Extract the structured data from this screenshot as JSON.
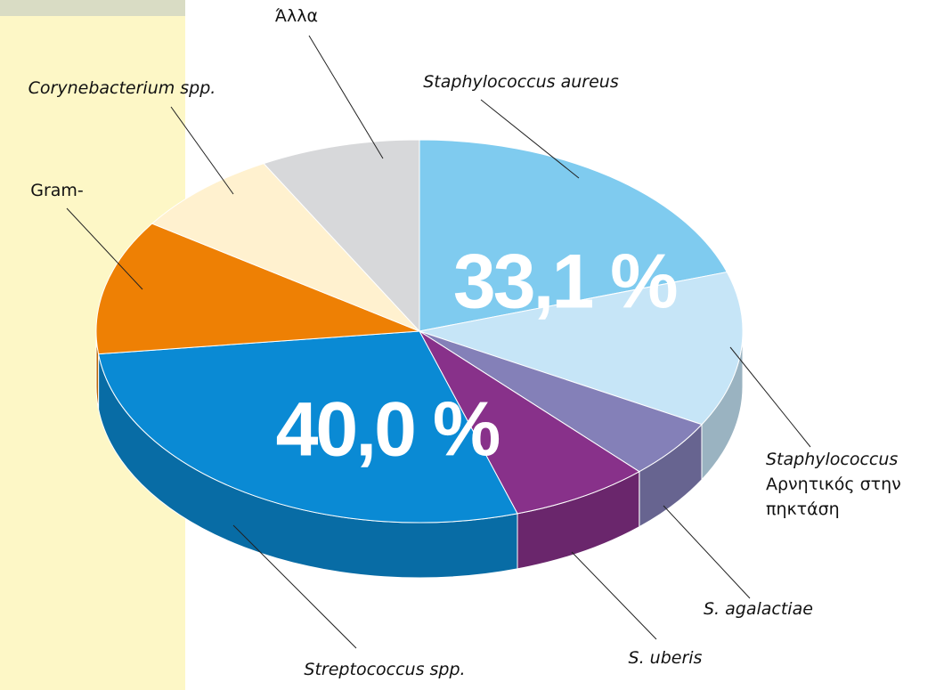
{
  "chart_data": {
    "type": "pie3d",
    "series": [
      {
        "name": "Staphylococcus aureus",
        "value": 20.0,
        "color": "#7fcbef",
        "italic": true
      },
      {
        "name": [
          "Staphylococcus",
          "Αρνητικός στην",
          "πηκτάση"
        ],
        "value": 13.1,
        "color": "#c6e5f7",
        "italic": true
      },
      {
        "name": "S. agalactiae",
        "value": 5.0,
        "color": "#8480b8",
        "italic": true
      },
      {
        "name": "S. uberis",
        "value": 7.0,
        "color": "#88318a",
        "italic": true
      },
      {
        "name": "Streptococcus spp.",
        "value": 28.0,
        "color": "#0a8ad4",
        "italic": true
      },
      {
        "name": "Gram-",
        "value": 11.4,
        "color": "#ee8004",
        "italic": false
      },
      {
        "name": "Corynebacterium spp.",
        "value": 7.5,
        "color": "#fff1cf",
        "italic": true
      },
      {
        "name": "Άλλα",
        "value": 8.0,
        "color": "#d7d8da",
        "italic": false
      }
    ],
    "group_labels": [
      {
        "value": 33.1,
        "label": "33,1 %"
      },
      {
        "value": 40.0,
        "label": "40,0 %"
      }
    ]
  }
}
